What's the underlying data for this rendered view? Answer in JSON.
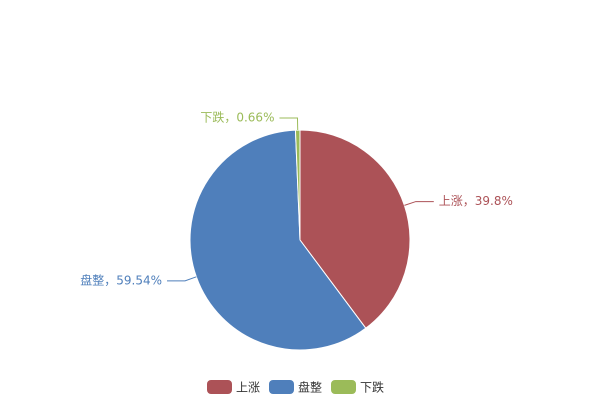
{
  "chart_data": {
    "type": "pie",
    "categories": [
      "上涨",
      "盘整",
      "下跌"
    ],
    "values": [
      39.8,
      59.54,
      0.66
    ],
    "value_labels": [
      "上涨，39.8%",
      "盘整，59.54%",
      "下跌，0.66%"
    ],
    "colors": [
      "#ac5257",
      "#4f7fbb",
      "#9bbb59"
    ],
    "legend": "bottom"
  }
}
